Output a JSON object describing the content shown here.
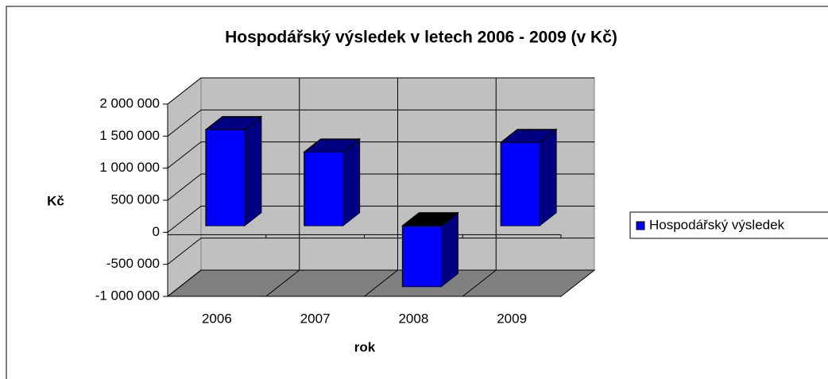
{
  "chart_data": {
    "type": "bar3d",
    "title": "Hospodářský výsledek v letech 2006 - 2009 (v Kč)",
    "xlabel": "rok",
    "ylabel": "Kč",
    "categories": [
      "2006",
      "2007",
      "2008",
      "2009"
    ],
    "series": [
      {
        "name": "Hospodářský výsledek",
        "color": "#0000ff",
        "values": [
          1500000,
          1150000,
          -950000,
          1300000
        ]
      }
    ],
    "ylim": [
      -1000000,
      2000000
    ],
    "yticks": [
      {
        "value": -1000000,
        "label": "-1 000 000"
      },
      {
        "value": -500000,
        "label": "-500 000"
      },
      0,
      {
        "value": 500000,
        "label": "500 000"
      },
      {
        "value": 1000000,
        "label": "1 000 000"
      },
      {
        "value": 1500000,
        "label": "1 500 000"
      },
      {
        "value": 2000000,
        "label": "2 000 000"
      }
    ],
    "grid": true,
    "legend": "right"
  }
}
